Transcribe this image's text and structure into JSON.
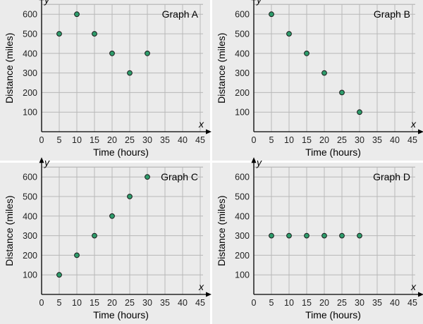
{
  "colors": {
    "background": "#ebebeb",
    "grid": "#b8b8b8",
    "divider": "#ffffff",
    "point_fill": "#2e9c6b",
    "point_stroke": "#1a1a1a"
  },
  "chart_data": [
    {
      "type": "scatter",
      "title": "Graph A",
      "xlabel": "Time (hours)",
      "ylabel": "Distance (miles)",
      "x_var": "x",
      "y_var": "y",
      "x": [
        5,
        10,
        15,
        20,
        25,
        30
      ],
      "y": [
        500,
        600,
        500,
        400,
        300,
        400
      ],
      "xlim": [
        0,
        48
      ],
      "ylim": [
        0,
        650
      ],
      "x_ticks": [
        0,
        5,
        10,
        15,
        20,
        25,
        30,
        35,
        40,
        45
      ],
      "y_ticks": [
        100,
        200,
        300,
        400,
        500,
        600
      ],
      "grid": true
    },
    {
      "type": "scatter",
      "title": "Graph B",
      "xlabel": "Time (hours)",
      "ylabel": "Distance (miles)",
      "x_var": "x",
      "y_var": "y",
      "x": [
        5,
        10,
        15,
        20,
        25,
        30
      ],
      "y": [
        600,
        500,
        400,
        300,
        200,
        100
      ],
      "xlim": [
        0,
        48
      ],
      "ylim": [
        0,
        650
      ],
      "x_ticks": [
        0,
        5,
        10,
        15,
        20,
        25,
        30,
        35,
        40,
        45
      ],
      "y_ticks": [
        100,
        200,
        300,
        400,
        500,
        600
      ],
      "grid": true
    },
    {
      "type": "scatter",
      "title": "Graph C",
      "xlabel": "Time (hours)",
      "ylabel": "Distance (miles)",
      "x_var": "x",
      "y_var": "y",
      "x": [
        5,
        10,
        15,
        20,
        25,
        30
      ],
      "y": [
        100,
        200,
        300,
        400,
        500,
        600
      ],
      "xlim": [
        0,
        48
      ],
      "ylim": [
        0,
        650
      ],
      "x_ticks": [
        0,
        5,
        10,
        15,
        20,
        25,
        30,
        35,
        40,
        45
      ],
      "y_ticks": [
        100,
        200,
        300,
        400,
        500,
        600
      ],
      "grid": true
    },
    {
      "type": "scatter",
      "title": "Graph D",
      "xlabel": "Time (hours)",
      "ylabel": "Distance (miles)",
      "x_var": "x",
      "y_var": "y",
      "x": [
        5,
        10,
        15,
        20,
        25,
        30
      ],
      "y": [
        300,
        300,
        300,
        300,
        300,
        300
      ],
      "xlim": [
        0,
        48
      ],
      "ylim": [
        0,
        650
      ],
      "x_ticks": [
        0,
        5,
        10,
        15,
        20,
        25,
        30,
        35,
        40,
        45
      ],
      "y_ticks": [
        100,
        200,
        300,
        400,
        500,
        600
      ],
      "grid": true
    }
  ]
}
